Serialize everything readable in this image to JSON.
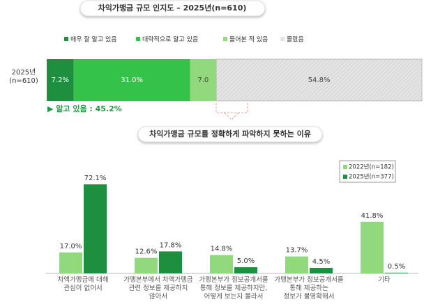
{
  "chart_data": [
    {
      "type": "stacked-bar",
      "title": "차익가맹금 규모 인지도 – 2025년(n=610)",
      "categories": [
        "2025년\n(n=610)"
      ],
      "xlim": [
        0,
        100
      ],
      "series": [
        {
          "name": "매우 잘 알고 있음",
          "color": "#1e8f3e",
          "values": [
            7.2
          ],
          "value_labels": [
            "7.2%"
          ]
        },
        {
          "name": "대략적으로 알고 있음",
          "color": "#35c24b",
          "values": [
            31.0
          ],
          "value_labels": [
            "31.0%"
          ]
        },
        {
          "name": "들어본 적 있음",
          "color": "#92d87c",
          "values": [
            7.0
          ],
          "value_labels": [
            "7.0"
          ]
        },
        {
          "name": "몰랐음",
          "color": "#e4e4e4",
          "values": [
            54.8
          ],
          "value_labels": [
            "54.8%"
          ]
        }
      ],
      "annotation": "▶ 알고 있음 : 45.2%"
    },
    {
      "type": "bar",
      "title": "차익가맹금 규모를 정확하게 파악하지 못하는 이유",
      "categories": [
        "차액가맹금에 대해\n관심이 없어서",
        "가맹본부에서 차액가맹금\n관련 정보를 제공하지\n않아서",
        "가맹본부가 정보공개서를\n통해 정보를 제공하지만,\n어떻게 보는지 몰라서",
        "가맹본부가 정보공개서를\n통해 제공하는\n정보가 불명확해서",
        "기타"
      ],
      "ylim": [
        0,
        80
      ],
      "legend": "top-right",
      "series": [
        {
          "name": "2022년(n=182)",
          "color": "#92d87c",
          "values": [
            17.0,
            12.6,
            14.8,
            13.7,
            41.8
          ],
          "value_labels": [
            "17.0%",
            "12.6%",
            "14.8%",
            "13.7%",
            "41.8%"
          ]
        },
        {
          "name": "2025년(n=377)",
          "color": "#1e8f3e",
          "values": [
            72.1,
            17.8,
            5.0,
            4.5,
            0.5
          ],
          "value_labels": [
            "72.1%",
            "17.8%",
            "5.0%",
            "4.5%",
            "0.5%"
          ]
        }
      ]
    }
  ]
}
